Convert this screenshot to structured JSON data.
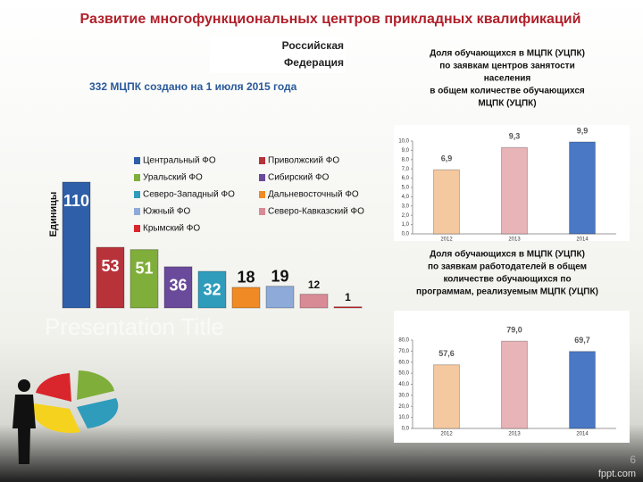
{
  "header": {
    "title": "Развитие многофункциональных центров прикладных квалификаций",
    "region": [
      "Российская",
      "Федерация"
    ],
    "subtitle": "332 МЦПК создано на 1 июля 2015 года"
  },
  "chart_data": [
    {
      "type": "bar",
      "ylabel": "Единицы",
      "categories": [
        "Центральный ФО",
        "Приволжский ФО",
        "Уральский ФО",
        "Сибирский ФО",
        "Северо-Западный ФО",
        "Дальневосточный ФО",
        "Южный ФО",
        "Северо-Кавказский ФО",
        "Крымский ФО"
      ],
      "values": [
        110,
        53,
        51,
        36,
        32,
        18,
        19,
        12,
        1
      ],
      "colors": [
        "#2f5fa8",
        "#b8323a",
        "#7fae3a",
        "#6a4a9a",
        "#2f9cbc",
        "#f08a24",
        "#8eaad8",
        "#d88a95",
        "#d9262c"
      ]
    },
    {
      "type": "bar",
      "title": [
        "Доля обучающихся в МЦПК (УЦПК)",
        "по заявкам центров занятости",
        "населения",
        "в общем количестве обучающихся",
        "МЦПК (УЦПК)"
      ],
      "categories": [
        "2012",
        "2013",
        "2014"
      ],
      "values": [
        6.9,
        9.3,
        9.9
      ],
      "value_labels": [
        "6,9",
        "9,3",
        "9,9"
      ],
      "colors": [
        "#f5c9a0",
        "#e8b4b8",
        "#4a78c4"
      ],
      "ylim": [
        0,
        10
      ],
      "yticks": [
        {
          "value": 0,
          "label": "0,0"
        },
        {
          "value": 1,
          "label": "1,0"
        },
        {
          "value": 2,
          "label": "2,0"
        },
        {
          "value": 3,
          "label": "3,0"
        },
        {
          "value": 4,
          "label": "4,0"
        },
        {
          "value": 5,
          "label": "5,0"
        },
        {
          "value": 6,
          "label": "6,0"
        },
        {
          "value": 7,
          "label": "7,0"
        },
        {
          "value": 8,
          "label": "8,0"
        },
        {
          "value": 9,
          "label": "9,0"
        },
        {
          "value": 10,
          "label": "10,0"
        }
      ]
    },
    {
      "type": "bar",
      "title": [
        "Доля обучающихся в МЦПК (УЦПК)",
        "по заявкам работодателей в общем",
        "количестве обучающихся по",
        "программам, реализуемым МЦПК (УЦПК)"
      ],
      "categories": [
        "2012",
        "2013",
        "2014"
      ],
      "values": [
        57.6,
        79.0,
        69.7
      ],
      "value_labels": [
        "57,6",
        "79,0",
        "69,7"
      ],
      "colors": [
        "#f5c9a0",
        "#e8b4b8",
        "#4a78c4"
      ],
      "ylim": [
        0,
        80
      ],
      "yticks": [
        {
          "value": 0,
          "label": "0,0"
        },
        {
          "value": 10,
          "label": "10,0"
        },
        {
          "value": 20,
          "label": "20,0"
        },
        {
          "value": 30,
          "label": "30,0"
        },
        {
          "value": 40,
          "label": "40,0"
        },
        {
          "value": 50,
          "label": "50,0"
        },
        {
          "value": 60,
          "label": "60,0"
        },
        {
          "value": 70,
          "label": "70,0"
        },
        {
          "value": 80,
          "label": "80,0"
        }
      ]
    }
  ],
  "footer": {
    "watermark": "Presentation Title",
    "page": "6",
    "brand": "fppt.com"
  }
}
